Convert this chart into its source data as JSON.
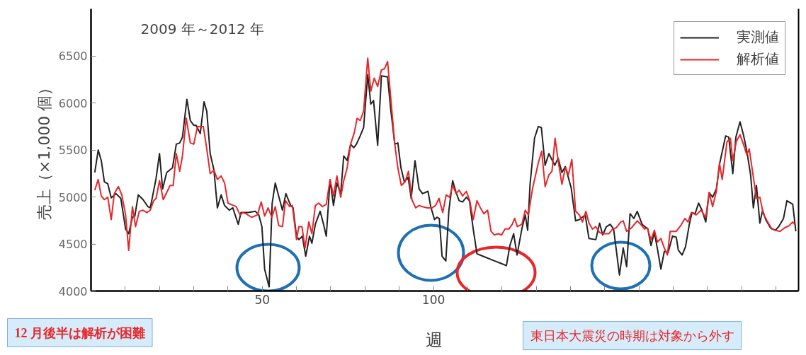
{
  "chart_data": {
    "type": "line",
    "title": "2009 年～2012 年",
    "xlabel": "週",
    "ylabel": "売上（×1,000 個）",
    "xlim": [
      0,
      206.6
    ],
    "ylim": [
      4000,
      7000
    ],
    "xticks": [
      {
        "value": 0,
        "label": null
      },
      {
        "value": 10,
        "label": null
      },
      {
        "value": 20,
        "label": null
      },
      {
        "value": 30,
        "label": null
      },
      {
        "value": 40,
        "label": null
      },
      50,
      {
        "value": 60,
        "label": null
      },
      {
        "value": 70,
        "label": null
      },
      {
        "value": 80,
        "label": null
      },
      {
        "value": 90,
        "label": null
      },
      100,
      {
        "value": 110,
        "label": null
      },
      {
        "value": 120,
        "label": null
      },
      {
        "value": 130,
        "label": null
      },
      {
        "value": 140,
        "label": null
      },
      {
        "value": 150,
        "label": null
      },
      {
        "value": 160,
        "label": null
      },
      {
        "value": 170,
        "label": null
      },
      {
        "value": 180,
        "label": null
      },
      {
        "value": 190,
        "label": null
      },
      {
        "value": 200,
        "label": null
      }
    ],
    "yticks": [
      4000,
      4500,
      5000,
      5500,
      6000,
      6500
    ],
    "grid": false,
    "legend": "top right",
    "marker": "none",
    "line_style": "solid",
    "series": [
      {
        "name": "実測値",
        "color": "#222222",
        "x": [
          1.1,
          2.1,
          3.0,
          3.9,
          4.9,
          5.9,
          7.3,
          8.7,
          10.1,
          11.0,
          12.1,
          12.8,
          13.8,
          15.2,
          16.6,
          17.3,
          18.0,
          19.0,
          20.0,
          20.9,
          22.1,
          23.8,
          24.9,
          25.9,
          26.7,
          28.0,
          29.0,
          30.0,
          30.7,
          31.9,
          33.0,
          33.8,
          34.8,
          35.9,
          36.9,
          38.0,
          39.0,
          40.4,
          41.4,
          43.0,
          43.8,
          45.9,
          48.0,
          49.0,
          49.9,
          50.7,
          52.0,
          52.9,
          53.8,
          54.8,
          55.9,
          56.9,
          58.3,
          59.0,
          60.0,
          60.7,
          61.7,
          62.7,
          63.8,
          64.5,
          65.5,
          66.9,
          67.9,
          68.7,
          69.8,
          70.8,
          71.8,
          72.9,
          73.8,
          74.8,
          75.8,
          76.7,
          77.5,
          78.6,
          79.6,
          80.8,
          81.7,
          82.5,
          83.7,
          84.8,
          86.6,
          87.5,
          88.7,
          89.6,
          90.5,
          91.5,
          92.6,
          93.5,
          94.6,
          95.8,
          96.8,
          98.4,
          99.2,
          100.3,
          101.0,
          101.7,
          102.5,
          103.6,
          104.5,
          105.6,
          106.6,
          107.5,
          108.5,
          109.6,
          110.5,
          111.6,
          112.7,
          114.4,
          117.8,
          119.6,
          121.3,
          122.3,
          123.4,
          124.4,
          125.8,
          126.8,
          127.5,
          128.2,
          129.5,
          130.6,
          131.5,
          132.6,
          133.7,
          135.4,
          136.4,
          137.5,
          138.5,
          140.2,
          141.5,
          142.6,
          144.3,
          145.4,
          147.4,
          148.5,
          149.4,
          150.5,
          151.6,
          152.6,
          154.3,
          155.4,
          156.4,
          157.4,
          158.5,
          159.5,
          160.9,
          162.6,
          163.5,
          164.5,
          165.4,
          166.4,
          167.4,
          168.5,
          169.8,
          170.9,
          171.5,
          172.6,
          173.6,
          174.7,
          175.5,
          176.4,
          177.4,
          178.4,
          179.5,
          180.5,
          181.5,
          182.6,
          183.6,
          185.3,
          186.2,
          187.4,
          188.3,
          189.5,
          190.5,
          191.5,
          192.6,
          193.4,
          194.3,
          195.3,
          196.1,
          197.0,
          198.4,
          199.8,
          200.8,
          202.2,
          203.2,
          204.9,
          205.8
        ],
        "values": [
          5260,
          5499,
          5386,
          5160,
          5140,
          4990,
          5035,
          4985,
          4659,
          4609,
          4784,
          4797,
          5022,
          4972,
          4897,
          4884,
          5010,
          5198,
          5461,
          5085,
          5260,
          5310,
          5561,
          5574,
          5636,
          6038,
          5812,
          5762,
          5762,
          5674,
          6012,
          5912,
          5461,
          5285,
          4884,
          5022,
          4909,
          4859,
          4884,
          4709,
          4834,
          4834,
          4847,
          4809,
          4684,
          4232,
          4044,
          4934,
          5148,
          5010,
          4859,
          5035,
          4909,
          4884,
          4583,
          4546,
          4583,
          4370,
          4583,
          4508,
          4709,
          4847,
          4709,
          4583,
          5185,
          4909,
          5148,
          5035,
          5436,
          5386,
          5561,
          5524,
          5561,
          5649,
          5737,
          6301,
          5987,
          6025,
          5549,
          6288,
          6276,
          5937,
          5561,
          5574,
          5310,
          5160,
          5210,
          4985,
          5386,
          5085,
          5035,
          5060,
          4897,
          4759,
          4784,
          4772,
          4370,
          4320,
          4859,
          5173,
          5047,
          4960,
          4947,
          4997,
          4960,
          4659,
          4396,
          4370,
          4320,
          4295,
          4270,
          4483,
          4609,
          4383,
          4659,
          4809,
          4646,
          5135,
          5624,
          5749,
          5737,
          5336,
          5461,
          5336,
          5411,
          5260,
          5323,
          5097,
          4746,
          4759,
          4809,
          4558,
          4546,
          4721,
          4596,
          4684,
          4709,
          4659,
          4170,
          4458,
          4258,
          4822,
          4771,
          4847,
          4709,
          4659,
          4483,
          4621,
          4446,
          4233,
          4421,
          4408,
          4584,
          4571,
          4433,
          4383,
          4471,
          4709,
          4834,
          4822,
          4934,
          4859,
          4734,
          5047,
          4997,
          5085,
          5361,
          5649,
          5636,
          5248,
          5636,
          5799,
          5662,
          5486,
          5235,
          4884,
          5123,
          4721,
          4859,
          4759,
          4671,
          4646,
          4684,
          4771,
          4960,
          4922,
          4634
        ]
      },
      {
        "name": "解析値",
        "color": "#e8262a",
        "x": [
          1.1,
          2.1,
          3.0,
          3.9,
          4.9,
          5.9,
          6.8,
          8.0,
          9.0,
          10.1,
          11.0,
          12.1,
          13.0,
          14.1,
          15.2,
          16.3,
          17.3,
          18.3,
          19.0,
          20.0,
          21.1,
          22.1,
          23.1,
          24.0,
          24.9,
          25.9,
          26.7,
          27.8,
          29.0,
          30.0,
          31.1,
          32.8,
          33.8,
          34.8,
          35.9,
          36.9,
          38.0,
          39.0,
          40.0,
          42.4,
          43.5,
          44.4,
          45.2,
          46.9,
          48.6,
          49.7,
          50.7,
          51.7,
          52.8,
          53.8,
          54.8,
          55.9,
          56.8,
          58.0,
          58.8,
          60.0,
          60.7,
          61.6,
          62.5,
          63.6,
          64.5,
          65.5,
          66.5,
          67.6,
          68.7,
          69.8,
          70.8,
          71.8,
          72.9,
          73.8,
          74.8,
          75.8,
          76.9,
          77.7,
          78.6,
          79.6,
          80.8,
          81.7,
          82.7,
          83.7,
          84.8,
          85.7,
          86.6,
          87.5,
          88.7,
          89.6,
          90.6,
          91.7,
          92.7,
          93.7,
          94.8,
          95.8,
          96.8,
          98.2,
          99.6,
          100.6,
          101.6,
          102.7,
          103.7,
          104.7,
          105.6,
          106.6,
          107.5,
          108.5,
          109.6,
          110.6,
          111.6,
          112.7,
          113.7,
          114.7,
          115.8,
          116.8,
          117.8,
          118.9,
          119.9,
          120.9,
          122.0,
          123.0,
          123.7,
          124.5,
          125.8,
          126.8,
          127.7,
          128.9,
          130.6,
          131.6,
          132.6,
          133.7,
          134.6,
          135.5,
          136.4,
          137.5,
          138.5,
          139.4,
          140.4,
          141.5,
          142.6,
          143.5,
          144.5,
          145.4,
          146.4,
          147.4,
          148.5,
          149.5,
          151.2,
          152.3,
          153.3,
          154.7,
          155.4,
          156.4,
          157.8,
          159.5,
          160.5,
          161.6,
          162.4,
          163.5,
          164.5,
          165.4,
          166.4,
          167.4,
          168.3,
          169.1,
          170.9,
          172.2,
          173.4,
          174.3,
          175.3,
          176.7,
          178.1,
          179.5,
          180.5,
          181.5,
          182.6,
          183.5,
          184.3,
          185.7,
          186.7,
          187.4,
          188.4,
          189.5,
          190.5,
          191.5,
          192.2,
          193.2,
          194.3,
          195.3,
          196.3,
          197.4,
          198.8,
          199.8,
          201.2,
          202.5,
          203.9,
          204.9,
          205.8
        ],
        "values": [
          5072,
          5185,
          5010,
          4972,
          4997,
          4759,
          5035,
          5110,
          5022,
          4809,
          4433,
          4897,
          4684,
          4847,
          4859,
          4834,
          4859,
          4960,
          4985,
          5173,
          4972,
          5047,
          5123,
          5123,
          5461,
          5273,
          5436,
          5837,
          5574,
          5561,
          5749,
          5749,
          5511,
          5248,
          5285,
          5185,
          5223,
          5148,
          4934,
          4897,
          4809,
          4834,
          4822,
          4784,
          4809,
          4947,
          4797,
          4884,
          4784,
          4897,
          4696,
          4684,
          4960,
          4897,
          4909,
          4546,
          4684,
          4684,
          4458,
          4734,
          4609,
          4909,
          4934,
          4897,
          4922,
          5185,
          5010,
          5223,
          4997,
          5173,
          5310,
          5561,
          5687,
          5837,
          5812,
          5912,
          6476,
          6125,
          6263,
          6175,
          6351,
          6363,
          6439,
          6063,
          5561,
          5310,
          5123,
          5160,
          5273,
          4972,
          4884,
          4909,
          4897,
          4884,
          4884,
          4909,
          4985,
          4834,
          5022,
          4997,
          5123,
          5035,
          5072,
          5010,
          5060,
          4960,
          4759,
          4960,
          4884,
          4822,
          4859,
          4634,
          4596,
          4609,
          4596,
          4659,
          4659,
          4709,
          4772,
          4684,
          4709,
          4859,
          4809,
          5085,
          5361,
          5486,
          5110,
          5235,
          5273,
          5624,
          5386,
          5135,
          5310,
          5235,
          5398,
          4847,
          4809,
          4734,
          4847,
          4721,
          4659,
          4684,
          4621,
          4609,
          4609,
          4659,
          4671,
          4734,
          4746,
          4634,
          4671,
          4746,
          4709,
          4659,
          4671,
          4546,
          4646,
          4521,
          4558,
          4458,
          4383,
          4634,
          4634,
          4696,
          4771,
          4734,
          4834,
          4809,
          4859,
          4784,
          5047,
          4897,
          5060,
          5361,
          5185,
          5586,
          5624,
          5386,
          5586,
          5662,
          5561,
          5448,
          5511,
          5260,
          4985,
          4997,
          4822,
          4746,
          4659,
          4646,
          4634,
          4671,
          4696,
          4734,
          4696
        ]
      }
    ],
    "annotations": [
      "12 月後半は解析が困難",
      "東日本大震災の時期は対象から外す"
    ]
  }
}
